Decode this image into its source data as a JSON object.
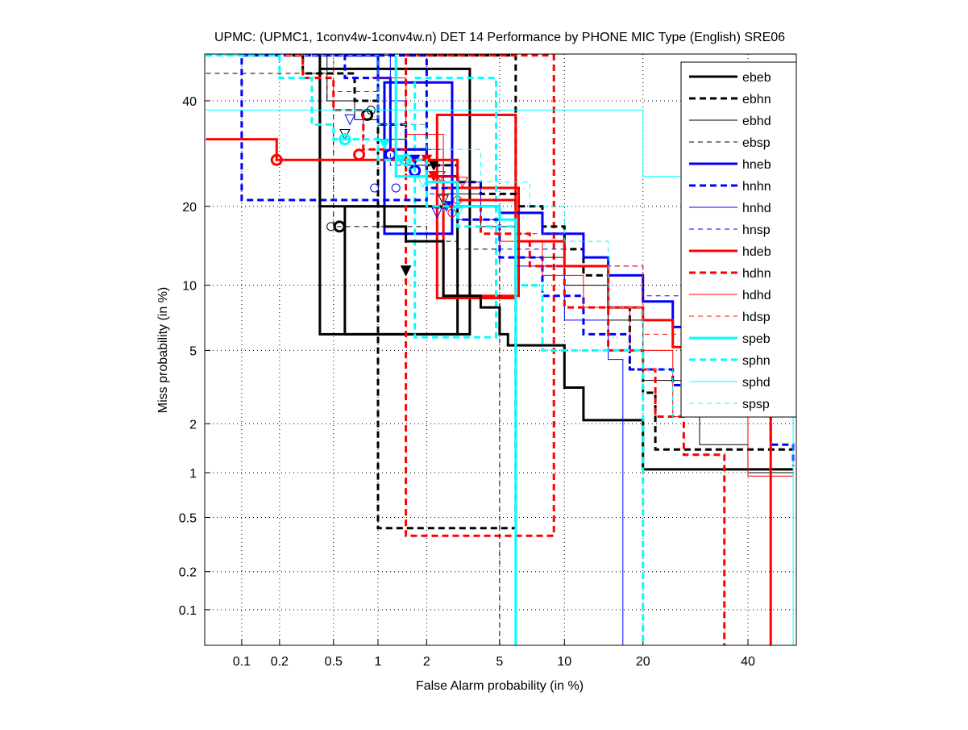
{
  "chart_data": {
    "type": "line",
    "title": "UPMC: (UPMC1, 1conv4w-1conv4w.n) DET 14 Performance by PHONE MIC Type (English) SRE06",
    "xlabel": "False Alarm probability (in %)",
    "ylabel": "Miss probability (in %)",
    "xscale": "normal-deviate",
    "yscale": "normal-deviate",
    "xlim": [
      0.05,
      50
    ],
    "ylim": [
      0.05,
      50
    ],
    "xticks": [
      0.1,
      0.2,
      0.5,
      1,
      2,
      5,
      10,
      20,
      40
    ],
    "xtick_labels": [
      "0.1",
      "0.2",
      "0.5",
      "1",
      "2",
      "5",
      "10",
      "20",
      "40"
    ],
    "yticks": [
      0.1,
      0.2,
      0.5,
      1,
      2,
      5,
      10,
      20,
      40
    ],
    "ytick_labels": [
      "0.1",
      "0.2",
      "0.5",
      "1",
      "2",
      "5",
      "10",
      "20",
      "40"
    ],
    "grid": true,
    "legend_position": "top-right",
    "series": [
      {
        "name": "ebeb",
        "color": "#000000",
        "width": 3,
        "dash": "",
        "points": [
          [
            0.4,
            50
          ],
          [
            0.4,
            20
          ],
          [
            1.1,
            20
          ],
          [
            1.1,
            17
          ],
          [
            1.5,
            17
          ],
          [
            1.5,
            15
          ],
          [
            2.5,
            15
          ],
          [
            2.5,
            9
          ],
          [
            4,
            9
          ],
          [
            4,
            8
          ],
          [
            5,
            8
          ],
          [
            5,
            6
          ],
          [
            5.5,
            6
          ],
          [
            5.5,
            5.3
          ],
          [
            10,
            5.3
          ],
          [
            10,
            3.2
          ],
          [
            12,
            3.2
          ],
          [
            12,
            2.1
          ],
          [
            20,
            2.1
          ],
          [
            20,
            1.05
          ],
          [
            50,
            1.05
          ]
        ],
        "mindcf": [
          0.55,
          17
        ],
        "actdcf": [
          1.5,
          11.5
        ]
      },
      {
        "name": "ebhn",
        "color": "#000000",
        "width": 3,
        "dash": "8,5",
        "points": [
          [
            0.25,
            50
          ],
          [
            0.3,
            46
          ],
          [
            0.5,
            46
          ],
          [
            0.7,
            40
          ],
          [
            1,
            35
          ],
          [
            1.5,
            30
          ],
          [
            2,
            27
          ],
          [
            3,
            24
          ],
          [
            4,
            22
          ],
          [
            6,
            20
          ],
          [
            8,
            17
          ],
          [
            10,
            14
          ],
          [
            12,
            11
          ],
          [
            15,
            8
          ],
          [
            18,
            4
          ],
          [
            20,
            3
          ],
          [
            22,
            1.4
          ],
          [
            50,
            1.4
          ]
        ],
        "mindcf": [
          0.85,
          37
        ],
        "actdcf": [
          2.2,
          27
        ]
      },
      {
        "name": "ebhd",
        "color": "#000000",
        "width": 1,
        "dash": "",
        "points": [
          [
            0.45,
            50
          ],
          [
            0.45,
            40
          ],
          [
            0.7,
            36
          ],
          [
            1,
            32
          ],
          [
            1.5,
            27
          ],
          [
            2.5,
            22
          ],
          [
            4,
            17
          ],
          [
            6,
            13
          ],
          [
            10,
            10
          ],
          [
            15,
            7
          ],
          [
            20,
            3.5
          ],
          [
            30,
            1.5
          ],
          [
            40,
            1
          ],
          [
            50,
            0.95
          ]
        ],
        "mindcf": [
          0.9,
          38
        ],
        "actdcf": [
          2.5,
          21
        ]
      },
      {
        "name": "ebsp",
        "color": "#000000",
        "width": 1,
        "dash": "6,5",
        "points": [
          [
            0.05,
            46
          ],
          [
            0.3,
            46
          ],
          [
            0.45,
            40
          ],
          [
            0.5,
            30
          ],
          [
            0.5,
            17
          ],
          [
            1.5,
            17
          ],
          [
            2,
            15
          ],
          [
            3,
            14
          ],
          [
            5,
            13
          ],
          [
            5,
            0.05
          ]
        ],
        "mindcf": [
          0.48,
          17
        ],
        "actdcf": [
          0.6,
          33
        ]
      },
      {
        "name": "hneb",
        "color": "#0000ff",
        "width": 3,
        "dash": "",
        "points": [
          [
            0.6,
            50
          ],
          [
            1,
            45
          ],
          [
            1.2,
            30
          ],
          [
            2,
            25
          ],
          [
            3,
            20
          ],
          [
            5,
            19
          ],
          [
            8,
            16
          ],
          [
            12,
            13
          ],
          [
            15,
            11
          ],
          [
            20,
            8.5
          ],
          [
            25,
            6.5
          ],
          [
            30,
            5
          ],
          [
            40,
            3
          ],
          [
            50,
            2.2
          ]
        ],
        "mindcf": [
          1.2,
          29
        ],
        "actdcf": [
          1.7,
          28
        ]
      },
      {
        "name": "hnhn",
        "color": "#0000ff",
        "width": 3,
        "dash": "8,5",
        "points": [
          [
            0.35,
            50
          ],
          [
            0.6,
            45
          ],
          [
            1,
            35
          ],
          [
            1.5,
            28
          ],
          [
            2,
            23
          ],
          [
            3,
            18
          ],
          [
            5,
            13
          ],
          [
            8,
            9
          ],
          [
            12,
            6
          ],
          [
            18,
            4
          ],
          [
            25,
            3.3
          ],
          [
            35,
            2.3
          ],
          [
            45,
            1.5
          ],
          [
            50,
            1.1
          ]
        ],
        "mindcf": [
          1.7,
          26
        ],
        "actdcf": [
          2.6,
          20
        ]
      },
      {
        "name": "hnhd",
        "color": "#0000ff",
        "width": 1,
        "dash": "",
        "points": [
          [
            0.7,
            50
          ],
          [
            1.2,
            40
          ],
          [
            1.5,
            30
          ],
          [
            2.5,
            24
          ],
          [
            4,
            18
          ],
          [
            6,
            12
          ],
          [
            10,
            7
          ],
          [
            15,
            4.5
          ],
          [
            17,
            0.05
          ]
        ],
        "mindcf": [
          1.3,
          23
        ],
        "actdcf": [
          2.3,
          19
        ]
      },
      {
        "name": "hnsp",
        "color": "#0000ff",
        "width": 1,
        "dash": "6,5",
        "points": [
          [
            0.6,
            38
          ],
          [
            0.8,
            30
          ],
          [
            1.2,
            27
          ],
          [
            2,
            22
          ],
          [
            3,
            18
          ],
          [
            5,
            14
          ],
          [
            10,
            12
          ],
          [
            20,
            9
          ],
          [
            35,
            6
          ],
          [
            50,
            4
          ]
        ],
        "mindcf": [
          0.95,
          23
        ],
        "actdcf": [
          0.65,
          36
        ]
      },
      {
        "name": "hdeb",
        "color": "#ff0000",
        "width": 3,
        "dash": "",
        "points": [
          [
            0.05,
            32
          ],
          [
            0.19,
            32
          ],
          [
            0.19,
            28
          ],
          [
            2.5,
            28
          ],
          [
            3,
            21
          ],
          [
            6,
            15
          ],
          [
            10,
            12
          ],
          [
            15,
            8
          ],
          [
            20,
            7
          ],
          [
            25,
            5.2
          ],
          [
            35,
            5.2
          ],
          [
            45,
            3.5
          ],
          [
            45,
            0.05
          ]
        ],
        "mindcf": [
          0.19,
          28
        ],
        "actdcf": [
          2.2,
          25
        ]
      },
      {
        "name": "hdhn",
        "color": "#ff0000",
        "width": 3,
        "dash": "8,5",
        "points": [
          [
            0.22,
            50
          ],
          [
            0.3,
            45
          ],
          [
            0.5,
            38
          ],
          [
            0.8,
            30
          ],
          [
            1.5,
            25
          ],
          [
            2.5,
            20
          ],
          [
            4,
            16
          ],
          [
            7,
            12
          ],
          [
            10,
            8
          ],
          [
            15,
            5
          ],
          [
            20,
            4
          ],
          [
            22,
            2.2
          ],
          [
            27,
            1.3
          ],
          [
            35,
            1.3
          ],
          [
            35,
            0.05
          ]
        ],
        "mindcf": [
          0.75,
          29
        ],
        "actdcf": [
          2,
          28
        ]
      },
      {
        "name": "hdhd",
        "color": "#ff0000",
        "width": 1,
        "dash": "",
        "points": [
          [
            0.9,
            45
          ],
          [
            1.5,
            33
          ],
          [
            2.5,
            25
          ],
          [
            3,
            20
          ],
          [
            5,
            15
          ],
          [
            8,
            11
          ],
          [
            12,
            8
          ],
          [
            18,
            5
          ],
          [
            25,
            2.2
          ],
          [
            40,
            1.4
          ],
          [
            40,
            0.95
          ],
          [
            50,
            0.95
          ]
        ],
        "mindcf": [
          3,
          21
        ],
        "actdcf": [
          2.4,
          25
        ]
      },
      {
        "name": "hdsp",
        "color": "#ff0000",
        "width": 1,
        "dash": "6,5",
        "points": [
          [
            0.3,
            50
          ],
          [
            0.5,
            42
          ],
          [
            1,
            35
          ],
          [
            2,
            25
          ],
          [
            3,
            21
          ],
          [
            5,
            16
          ],
          [
            10,
            12
          ],
          [
            20,
            6
          ],
          [
            35,
            3
          ],
          [
            50,
            2
          ]
        ],
        "mindcf": [
          2.8,
          19
        ],
        "actdcf": [
          3.2,
          24
        ]
      },
      {
        "name": "speb",
        "color": "#00ffff",
        "width": 3,
        "dash": "",
        "points": [
          [
            1.3,
            50
          ],
          [
            1.3,
            25
          ],
          [
            2,
            24
          ],
          [
            3,
            20
          ],
          [
            5,
            18
          ],
          [
            6,
            12
          ],
          [
            6,
            0.05
          ]
        ],
        "mindcf": [
          1.5,
          28
        ],
        "actdcf": [
          1.1,
          31
        ]
      },
      {
        "name": "sphn",
        "color": "#00ffff",
        "width": 3,
        "dash": "8,5",
        "points": [
          [
            0.05,
            50
          ],
          [
            0.15,
            50
          ],
          [
            0.2,
            45
          ],
          [
            0.35,
            45
          ],
          [
            0.35,
            35
          ],
          [
            0.5,
            32
          ],
          [
            1,
            28
          ],
          [
            2,
            20
          ],
          [
            3,
            17
          ],
          [
            6,
            10
          ],
          [
            8,
            5
          ],
          [
            20,
            5
          ],
          [
            20,
            0.05
          ]
        ],
        "mindcf": [
          0.6,
          32
        ],
        "actdcf": [
          1.4,
          28
        ]
      },
      {
        "name": "sphd",
        "color": "#00ffff",
        "width": 1,
        "dash": "",
        "points": [
          [
            0.05,
            38
          ],
          [
            20,
            38
          ],
          [
            20,
            25
          ],
          [
            35,
            25
          ],
          [
            35,
            12
          ],
          [
            50,
            12
          ],
          [
            50,
            0.05
          ]
        ],
        "mindcf": [
          2.5,
          20
        ],
        "actdcf": [
          3,
          19
        ]
      },
      {
        "name": "spsp",
        "color": "#00ffff",
        "width": 1,
        "dash": "6,5",
        "points": [
          [
            0.05,
            50
          ],
          [
            1,
            50
          ],
          [
            1,
            35
          ],
          [
            2,
            30
          ],
          [
            4,
            24
          ],
          [
            7,
            20
          ],
          [
            10,
            15
          ],
          [
            15,
            8
          ],
          [
            20,
            4
          ],
          [
            25,
            2
          ]
        ],
        "mindcf": [
          1.6,
          27
        ],
        "actdcf": [
          1.9,
          24
        ]
      }
    ],
    "boxes": [
      {
        "series": "ebeb",
        "fa": [
          0.4,
          3.5
        ],
        "miss": [
          6,
          47
        ]
      },
      {
        "series": "ebeb",
        "fa": [
          0.6,
          3
        ],
        "miss": [
          6,
          20
        ]
      },
      {
        "series": "ebhn",
        "fa": [
          1,
          6
        ],
        "miss": [
          0.42,
          50
        ]
      },
      {
        "series": "hneb",
        "fa": [
          1.1,
          2.8
        ],
        "miss": [
          16,
          44
        ]
      },
      {
        "series": "hdeb",
        "fa": [
          2.3,
          6
        ],
        "miss": [
          8.8,
          37
        ]
      },
      {
        "series": "hdeb",
        "fa": [
          2.5,
          6.2
        ],
        "miss": [
          9,
          23
        ]
      },
      {
        "series": "hdhn",
        "fa": [
          1.5,
          9
        ],
        "miss": [
          0.37,
          50
        ]
      },
      {
        "series": "sphn",
        "fa": [
          1.7,
          4.8
        ],
        "miss": [
          5.8,
          45
        ]
      },
      {
        "series": "hnhn",
        "fa": [
          0.1,
          2
        ],
        "miss": [
          21,
          50
        ]
      }
    ]
  }
}
